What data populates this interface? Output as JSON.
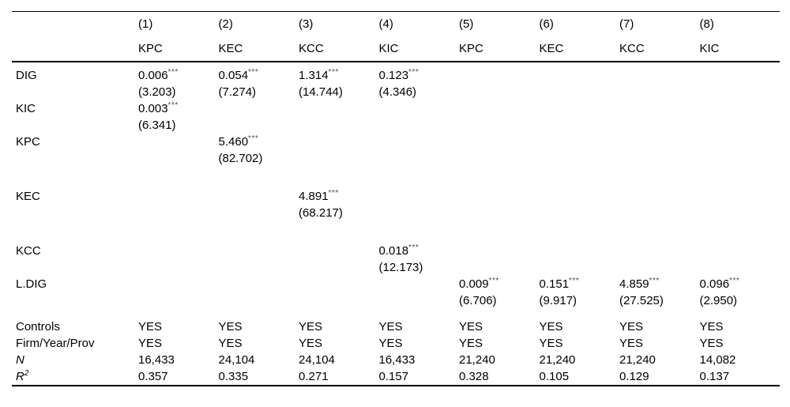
{
  "colors": {
    "background": "#ffffff",
    "text": "#000000",
    "rule": "#000000",
    "stars": "#4d4d4d"
  },
  "table": {
    "col_headers": [
      {
        "num": "(1)",
        "model": "KPC"
      },
      {
        "num": "(2)",
        "model": "KEC"
      },
      {
        "num": "(3)",
        "model": "KCC"
      },
      {
        "num": "(4)",
        "model": "KIC"
      },
      {
        "num": "(5)",
        "model": "KPC"
      },
      {
        "num": "(6)",
        "model": "KEC"
      },
      {
        "num": "(7)",
        "model": "KCC"
      },
      {
        "num": "(8)",
        "model": "KIC"
      }
    ],
    "coef_rows": [
      {
        "label": "DIG",
        "cells": [
          {
            "coef": "0.006",
            "stars": "***",
            "t": "(3.203)"
          },
          {
            "coef": "0.054",
            "stars": "***",
            "t": "(7.274)"
          },
          {
            "coef": "1.314",
            "stars": "***",
            "t": "(14.744)"
          },
          {
            "coef": "0.123",
            "stars": "***",
            "t": "(4.346)"
          },
          null,
          null,
          null,
          null
        ]
      },
      {
        "label": "KIC",
        "cells": [
          {
            "coef": "0.003",
            "stars": "***",
            "t": "(6.341)"
          },
          null,
          null,
          null,
          null,
          null,
          null,
          null
        ]
      },
      {
        "label": "KPC",
        "cells": [
          null,
          {
            "coef": "5.460",
            "stars": "***",
            "t": "(82.702)"
          },
          null,
          null,
          null,
          null,
          null,
          null
        ]
      },
      {
        "label": "KEC",
        "cells": [
          null,
          null,
          {
            "coef": "4.891",
            "stars": "***",
            "t": "(68.217)"
          },
          null,
          null,
          null,
          null,
          null
        ]
      },
      {
        "label": "KCC",
        "cells": [
          null,
          null,
          null,
          {
            "coef": "0.018",
            "stars": "***",
            "t": "(12.173)"
          },
          null,
          null,
          null,
          null
        ]
      },
      {
        "label": "L.DIG",
        "cells": [
          null,
          null,
          null,
          null,
          {
            "coef": "0.009",
            "stars": "***",
            "t": "(6.706)"
          },
          {
            "coef": "0.151",
            "stars": "***",
            "t": "(9.917)"
          },
          {
            "coef": "4.859",
            "stars": "***",
            "t": "(27.525)"
          },
          {
            "coef": "0.096",
            "stars": "***",
            "t": "(2.950)"
          }
        ]
      }
    ],
    "stat_rows": [
      {
        "label": "Controls",
        "cells": [
          "YES",
          "YES",
          "YES",
          "YES",
          "YES",
          "YES",
          "YES",
          "YES"
        ]
      },
      {
        "label": "Firm/Year/Prov",
        "cells": [
          "YES",
          "YES",
          "YES",
          "YES",
          "YES",
          "YES",
          "YES",
          "YES"
        ]
      },
      {
        "label": "N",
        "cells": [
          "16,433",
          "24,104",
          "24,104",
          "16,433",
          "21,240",
          "21,240",
          "21,240",
          "14,082"
        ]
      },
      {
        "label": "R",
        "label_sup": "2",
        "cells": [
          "0.357",
          "0.335",
          "0.271",
          "0.157",
          "0.328",
          "0.105",
          "0.129",
          "0.137"
        ]
      }
    ]
  }
}
